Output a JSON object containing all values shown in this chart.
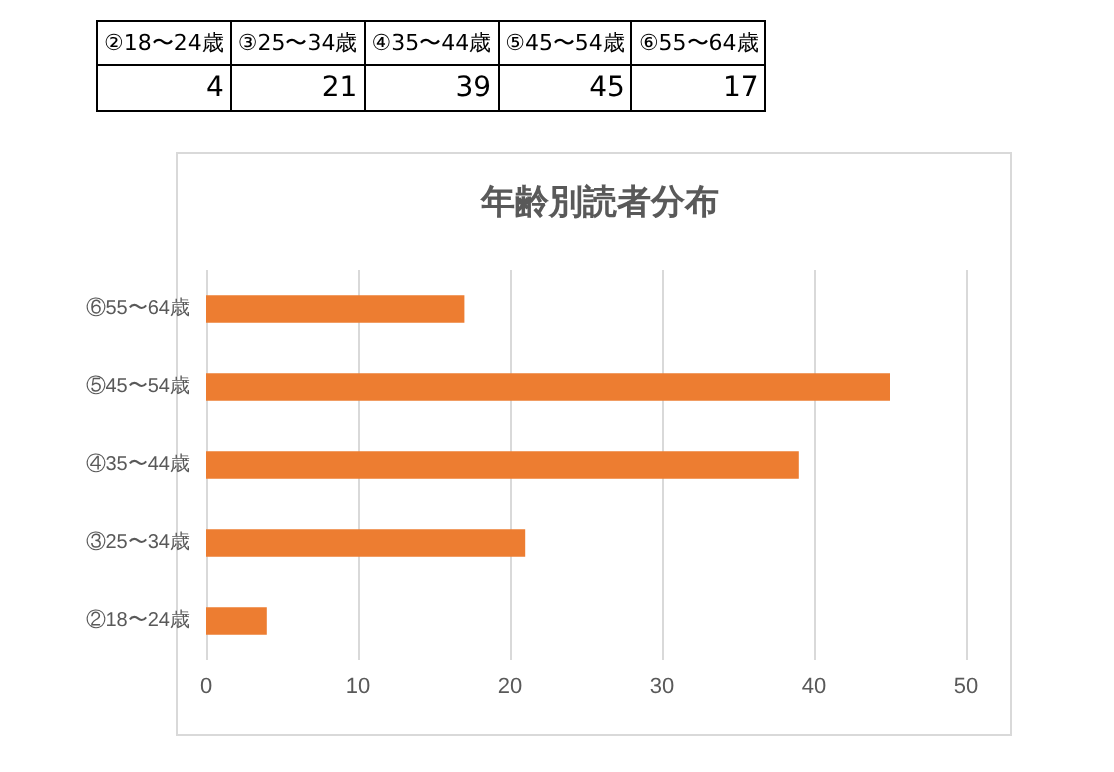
{
  "chart_data": [
    {
      "type": "other",
      "categories": [
        "②18〜24歳",
        "③25〜34歳",
        "④35〜44歳",
        "⑤45〜54歳",
        "⑥55〜64歳"
      ],
      "values": [
        4,
        21,
        39,
        45,
        17
      ],
      "data_labels": true
    },
    {
      "type": "bar",
      "orientation": "horizontal",
      "title": "年齢別読者分布",
      "categories": [
        "⑥55〜64歳",
        "⑤45〜54歳",
        "④35〜44歳",
        "③25〜34歳",
        "②18〜24歳"
      ],
      "values": [
        17,
        45,
        39,
        21,
        4
      ],
      "color": "#ed7d31",
      "xlim": [
        0,
        50
      ],
      "xticks": [
        0,
        10,
        20,
        30,
        40,
        50
      ],
      "grid": "x"
    }
  ]
}
